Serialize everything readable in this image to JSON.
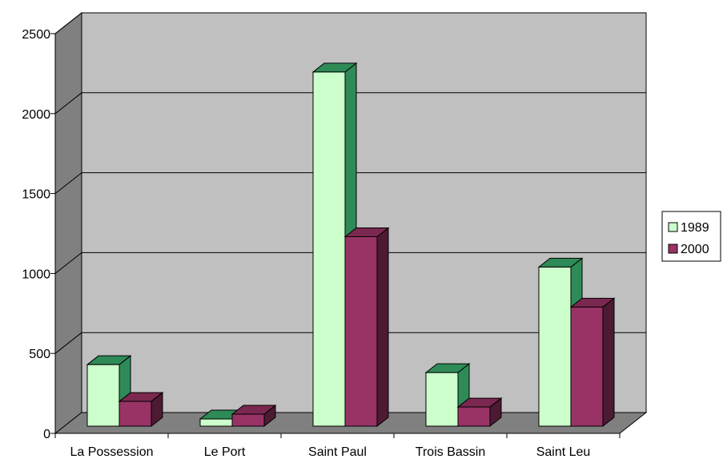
{
  "chart_data": {
    "type": "bar",
    "title": "",
    "xlabel": "",
    "ylabel": "",
    "categories": [
      "La Possession",
      "Le Port",
      "Saint Paul",
      "Trois Bassin",
      "Saint Leu"
    ],
    "series": [
      {
        "name": "1989",
        "values": [
          430,
          90,
          2260,
          380,
          1040
        ],
        "color": "#ccffcc",
        "top_color": "#2e8b57",
        "side_color": "#2e8b57"
      },
      {
        "name": "2000",
        "values": [
          200,
          120,
          1230,
          165,
          790
        ],
        "color": "#993366",
        "top_color": "#7a2850",
        "side_color": "#4d1a33"
      }
    ],
    "ylim": [
      0,
      2500
    ],
    "yticks": [
      0,
      500,
      1000,
      1500,
      2000,
      2500
    ],
    "grid": true,
    "three_d": true,
    "legend_position": "right"
  },
  "colors": {
    "wall": "#c0c0c0",
    "floor": "#808080",
    "gridline": "#000000"
  }
}
